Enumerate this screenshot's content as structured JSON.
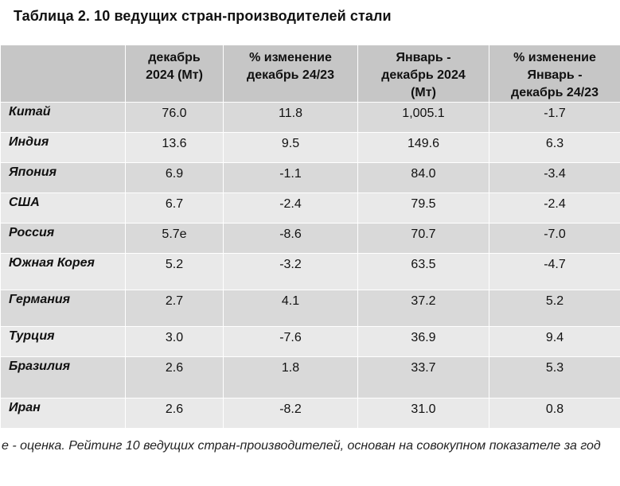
{
  "title": "Таблица 2. 10 ведущих стран-производителей стали",
  "headers": [
    "",
    "декабрь\n2024 (Мт)",
    "% изменение\nдекабрь 24/23",
    "Январь -\nдекабрь 2024\n(Мт)",
    "% изменение\nЯнварь -\nдекабрь 24/23"
  ],
  "rows": [
    {
      "country": "Китай",
      "dec": "76.0",
      "dec_change": "11.8",
      "year": "1,005.1",
      "year_change": "-1.7"
    },
    {
      "country": "Индия",
      "dec": "13.6",
      "dec_change": "9.5",
      "year": "149.6",
      "year_change": "6.3"
    },
    {
      "country": "Япония",
      "dec": "6.9",
      "dec_change": "-1.1",
      "year": "84.0",
      "year_change": "-3.4"
    },
    {
      "country": "США",
      "dec": "6.7",
      "dec_change": "-2.4",
      "year": "79.5",
      "year_change": "-2.4"
    },
    {
      "country": "Россия",
      "dec": "5.7e",
      "dec_change": "-8.6",
      "year": "70.7",
      "year_change": "-7.0"
    },
    {
      "country": "Южная Корея",
      "dec": "5.2",
      "dec_change": "-3.2",
      "year": "63.5",
      "year_change": "-4.7"
    },
    {
      "country": "Германия",
      "dec": "2.7",
      "dec_change": "4.1",
      "year": "37.2",
      "year_change": "5.2"
    },
    {
      "country": "Турция",
      "dec": "3.0",
      "dec_change": "-7.6",
      "year": "36.9",
      "year_change": "9.4"
    },
    {
      "country": "Бразилия",
      "dec": "2.6",
      "dec_change": "1.8",
      "year": "33.7",
      "year_change": "5.3"
    },
    {
      "country": "Иран",
      "dec": "2.6",
      "dec_change": "-8.2",
      "year": "31.0",
      "year_change": "0.8"
    }
  ],
  "footnote": " e - оценка. Рейтинг 10 ведущих стран-производителей, основан на совокупном показателе за год",
  "colors": {
    "header_bg": "#c6c6c6",
    "row_odd_bg": "#d9d9d9",
    "row_even_bg": "#e9e9e9"
  }
}
